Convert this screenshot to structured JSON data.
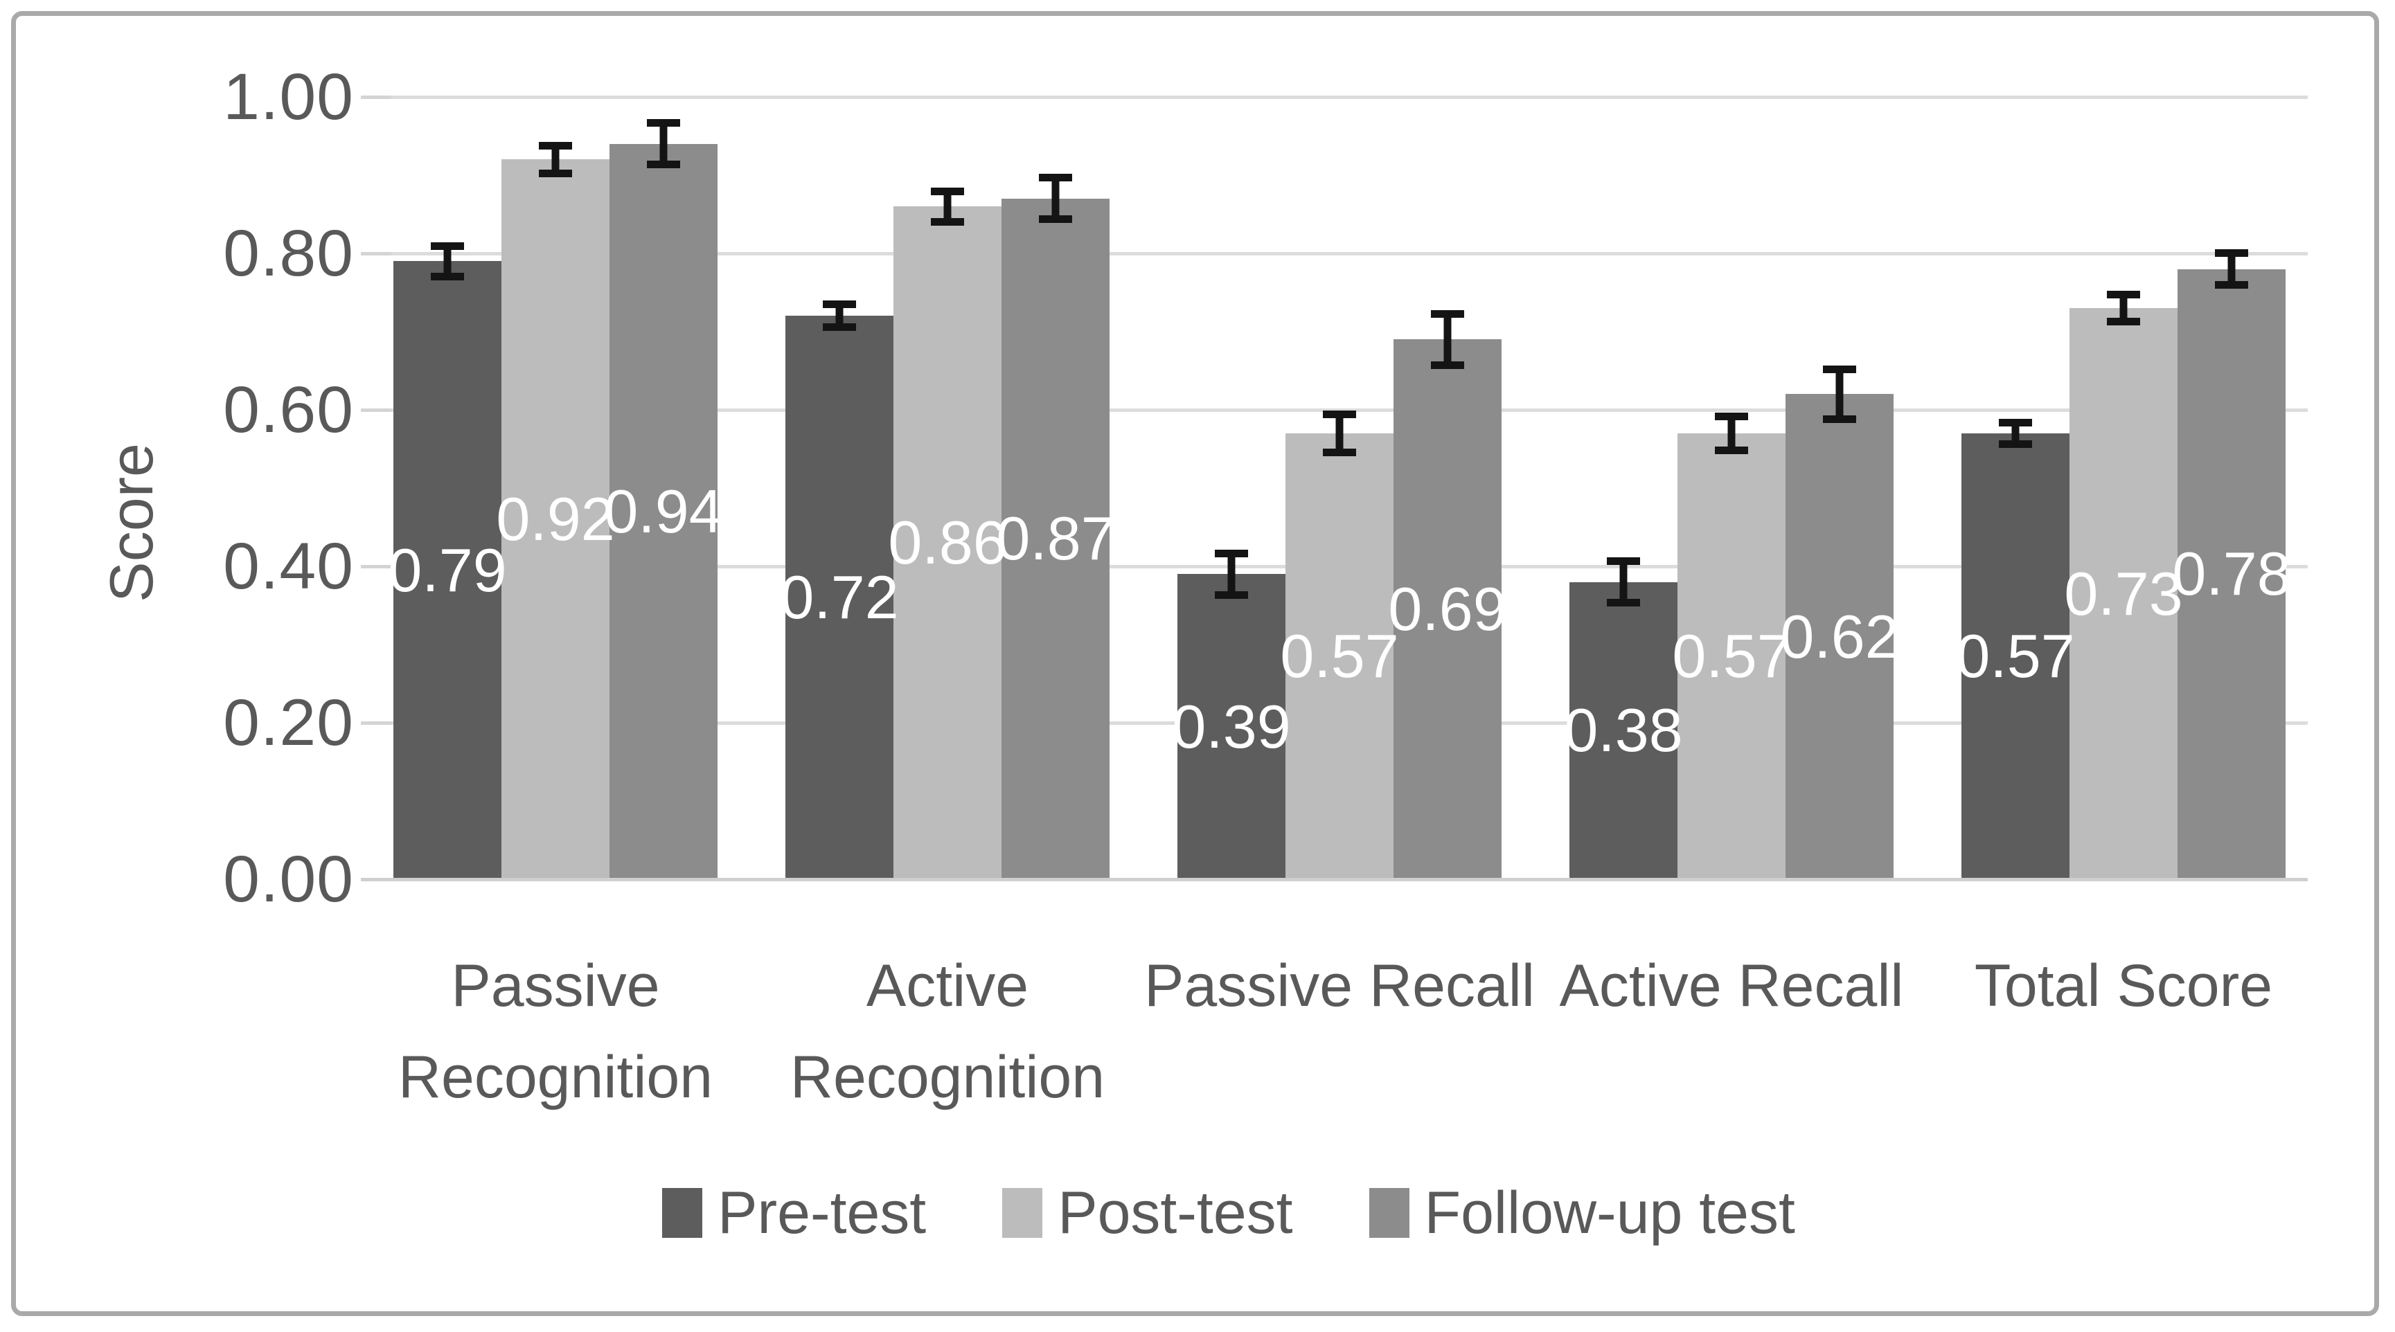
{
  "frame": {
    "border_color": "#a9a9a9",
    "background": "#ffffff"
  },
  "chart_data": {
    "type": "bar",
    "title": "",
    "xlabel": "",
    "ylabel": "Score",
    "ylim": [
      0.0,
      1.0
    ],
    "ytick_step": 0.2,
    "yticks": [
      "1.00",
      "0.80",
      "0.60",
      "0.40",
      "0.20",
      "0.00"
    ],
    "grid": true,
    "gridline_color": "#dcdcdc",
    "axis_text_color": "#595959",
    "error_bar_color": "#141414",
    "data_label_color": "#ffffff",
    "legend_position": "bottom",
    "data_labels": true,
    "error_bars": true,
    "categories": [
      "Passive Recognition",
      "Active Recognition",
      "Passive Recall",
      "Active Recall",
      "Total Score"
    ],
    "categories_wrapped": [
      [
        "Passive",
        "Recognition"
      ],
      [
        "Active",
        "Recognition"
      ],
      [
        "Passive Recall"
      ],
      [
        "Active Recall"
      ],
      [
        "Total Score"
      ]
    ],
    "series": [
      {
        "name": "Pre-test",
        "color": "#5d5d5d",
        "values": [
          0.79,
          0.72,
          0.39,
          0.38,
          0.57
        ],
        "display_values": [
          "0.79",
          "0.72",
          "0.39",
          "0.38",
          "0.57"
        ],
        "errors": [
          0.02,
          0.015,
          0.027,
          0.027,
          0.014
        ]
      },
      {
        "name": "Post-test",
        "color": "#bcbcbc",
        "values": [
          0.92,
          0.86,
          0.57,
          0.57,
          0.73
        ],
        "display_values": [
          "0.92",
          "0.86",
          "0.57",
          "0.57",
          "0.73"
        ],
        "errors": [
          0.018,
          0.02,
          0.025,
          0.022,
          0.018
        ]
      },
      {
        "name": "Follow-up test",
        "color": "#8c8c8c",
        "values": [
          0.94,
          0.87,
          0.69,
          0.62,
          0.78
        ],
        "display_values": [
          "0.94",
          "0.87",
          "0.69",
          "0.62",
          "0.78"
        ],
        "errors": [
          0.027,
          0.027,
          0.033,
          0.032,
          0.021
        ]
      }
    ]
  }
}
